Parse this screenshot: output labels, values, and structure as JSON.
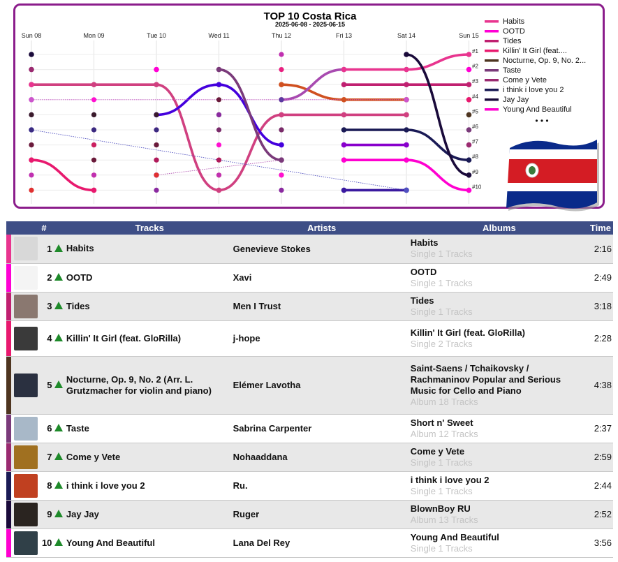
{
  "chart_data": {
    "type": "line",
    "title": "TOP 10 Costa Rica",
    "subtitle": "2025-06-08 - 2025-06-15",
    "x": [
      "Sun 08",
      "Mon 09",
      "Tue 10",
      "Wed 11",
      "Thu 12",
      "Fri 13",
      "Sat 14",
      "Sun 15"
    ],
    "rank_labels": [
      "#1",
      "#2",
      "#3",
      "#4",
      "#5",
      "#6",
      "#7",
      "#8",
      "#9",
      "#10"
    ],
    "ylim": [
      1,
      10
    ],
    "y_inverted": true,
    "legend_position": "right",
    "legend_more": "• • •",
    "series": [
      {
        "name": "Habits",
        "color": "#e8358f",
        "values": [
          3,
          null,
          null,
          null,
          null,
          2,
          2,
          1
        ]
      },
      {
        "name": "OOTD",
        "color": "#ff00d4",
        "values": [
          null,
          null,
          2,
          null,
          null,
          null,
          null,
          2
        ]
      },
      {
        "name": "Tides",
        "color": "#c02070",
        "values": [
          null,
          null,
          null,
          null,
          null,
          3,
          3,
          3
        ]
      },
      {
        "name": "Killin' It Girl (feat. GloRilla)",
        "color": "#e8196e",
        "values": [
          8,
          10,
          null,
          null,
          null,
          null,
          null,
          4
        ]
      },
      {
        "name": "Nocturne, Op. 9, No. 2 (Arr. L. Grutzmacher for violin and piano)",
        "color": "#4e3520",
        "values": [
          null,
          null,
          null,
          null,
          null,
          null,
          null,
          5
        ]
      },
      {
        "name": "Taste",
        "color": "#7a3a7a",
        "values": [
          null,
          null,
          null,
          2,
          8,
          null,
          null,
          6
        ]
      },
      {
        "name": "Come y Vete",
        "color": "#9a2a70",
        "values": [
          2,
          null,
          null,
          null,
          null,
          null,
          null,
          7
        ]
      },
      {
        "name": "i think i love you 2",
        "color": "#1a1a55",
        "values": [
          null,
          null,
          null,
          null,
          null,
          6,
          6,
          8
        ]
      },
      {
        "name": "Jay Jay",
        "color": "#1a0a3a",
        "values": [
          1,
          null,
          null,
          null,
          null,
          null,
          1,
          9
        ]
      },
      {
        "name": "Young And Beautiful",
        "color": "#ff00d0",
        "values": [
          null,
          null,
          null,
          null,
          null,
          8,
          8,
          10
        ]
      }
    ],
    "others": [
      {
        "color": "#d04080",
        "values": [
          3,
          3,
          3,
          10,
          5,
          5,
          5,
          null
        ],
        "style": "thick"
      },
      {
        "color": "#4400dd",
        "values": [
          null,
          null,
          5,
          3,
          7,
          null,
          null,
          null
        ],
        "style": "thick"
      },
      {
        "color": "#d05020",
        "values": [
          null,
          null,
          null,
          null,
          3,
          4,
          4,
          null
        ],
        "style": "thick"
      },
      {
        "color": "#8800cc",
        "values": [
          null,
          null,
          null,
          null,
          null,
          7,
          7,
          null
        ],
        "style": "thick"
      },
      {
        "color": "#3a1aa0",
        "values": [
          null,
          null,
          null,
          null,
          null,
          10,
          10,
          null
        ],
        "style": "thick"
      },
      {
        "color": "#a84ab0",
        "values": [
          null,
          null,
          null,
          null,
          4,
          2,
          null,
          null
        ],
        "style": "thick"
      },
      {
        "color": "#5050c0",
        "values": [
          6,
          null,
          null,
          null,
          null,
          null,
          10,
          null
        ],
        "style": "dotted"
      },
      {
        "color": "#cc55cc",
        "values": [
          4,
          null,
          null,
          null,
          null,
          null,
          4,
          null
        ],
        "style": "dotted"
      },
      {
        "color": "#b050b0",
        "values": [
          null,
          null,
          9,
          null,
          8,
          null,
          null,
          null
        ],
        "style": "dotted"
      }
    ]
  },
  "table": {
    "headers": {
      "rank": "#",
      "tracks": "Tracks",
      "artists": "Artists",
      "albums": "Albums",
      "time": "Time"
    },
    "rows": [
      {
        "rank": "1",
        "track": "Habits",
        "artist": "Genevieve Stokes",
        "album": "Habits",
        "album_type": "Single 1 Tracks",
        "time": "2:16",
        "color": "#e8358f",
        "thumb": "#d8d8d8"
      },
      {
        "rank": "2",
        "track": "OOTD",
        "artist": "Xavi",
        "album": "OOTD",
        "album_type": "Single 1 Tracks",
        "time": "2:49",
        "color": "#ff00d4",
        "thumb": "#f4f4f4"
      },
      {
        "rank": "3",
        "track": "Tides",
        "artist": "Men I Trust",
        "album": "Tides",
        "album_type": "Single 1 Tracks",
        "time": "3:18",
        "color": "#c02070",
        "thumb": "#8a7870"
      },
      {
        "rank": "4",
        "track": "Killin' It Girl (feat. GloRilla)",
        "artist": "j-hope",
        "album": "Killin' It Girl (feat. GloRilla)",
        "album_type": "Single 2 Tracks",
        "time": "2:28",
        "color": "#e8196e",
        "thumb": "#3a3a3a"
      },
      {
        "rank": "5",
        "track": "Nocturne, Op. 9, No. 2 (Arr. L. Grutzmacher for violin and piano)",
        "artist": "Elémer Lavotha",
        "album": "Saint-Saens / Tchaikovsky / Rachmaninov Popular and Serious Music for Cello and Piano",
        "album_type": "Album 18 Tracks",
        "time": "4:38",
        "color": "#4e3520",
        "thumb": "#2a3040"
      },
      {
        "rank": "6",
        "track": "Taste",
        "artist": "Sabrina Carpenter",
        "album": "Short n' Sweet",
        "album_type": "Album 12 Tracks",
        "time": "2:37",
        "color": "#7a3a7a",
        "thumb": "#a8b8c8"
      },
      {
        "rank": "7",
        "track": "Come y Vete",
        "artist": "Nohaaddana",
        "album": "Come y Vete",
        "album_type": "Single 1 Tracks",
        "time": "2:59",
        "color": "#9a2a70",
        "thumb": "#a07020"
      },
      {
        "rank": "8",
        "track": "i think i love you 2",
        "artist": "Ru.",
        "album": "i think i love you 2",
        "album_type": "Single 1 Tracks",
        "time": "2:44",
        "color": "#1a1a55",
        "thumb": "#c04020"
      },
      {
        "rank": "9",
        "track": "Jay Jay",
        "artist": "Ruger",
        "album": "BlownBoy RU",
        "album_type": "Album 13 Tracks",
        "time": "2:52",
        "color": "#1a0a3a",
        "thumb": "#2a2420"
      },
      {
        "rank": "10",
        "track": "Young And Beautiful",
        "artist": "Lana Del Rey",
        "album": "Young And Beautiful",
        "album_type": "Single 1 Tracks",
        "time": "3:56",
        "color": "#ff00d0",
        "thumb": "#304048"
      }
    ]
  },
  "flag": {
    "blue": "#0a2a8a",
    "white": "#ffffff",
    "red": "#d41c24"
  }
}
